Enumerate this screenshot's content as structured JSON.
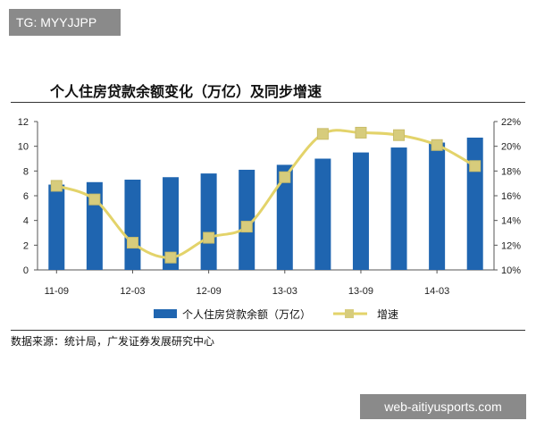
{
  "watermark": {
    "text": "TG: MYYJJPP"
  },
  "title": "个人住房贷款余额变化（万亿）及同步增速",
  "source": "数据来源：统计局，广发证券发展研究中心",
  "footer_badge": "web-aitiyusports.com",
  "colors": {
    "bar": "#1f65b0",
    "line": "#e3d36a",
    "marker": "#d7cc7c"
  },
  "chart_data": {
    "type": "bar",
    "x_tick_labels": [
      "11-09",
      "12-03",
      "12-09",
      "13-03",
      "13-09",
      "14-03"
    ],
    "x_tick_positions": [
      0,
      2,
      4,
      6,
      8,
      10
    ],
    "left_axis": {
      "ylim": [
        0,
        12
      ],
      "ticks": [
        "0",
        "2",
        "4",
        "6",
        "8",
        "10",
        "12"
      ]
    },
    "right_axis": {
      "ylim": [
        10,
        22
      ],
      "ticks": [
        "10%",
        "12%",
        "14%",
        "16%",
        "18%",
        "20%",
        "22%"
      ]
    },
    "series": [
      {
        "name": "个人住房贷款余额（万亿）",
        "type": "bar",
        "axis": "left",
        "values": [
          6.9,
          7.1,
          7.3,
          7.5,
          7.8,
          8.1,
          8.5,
          9.0,
          9.5,
          9.9,
          10.3,
          10.7
        ]
      },
      {
        "name": "增速",
        "type": "line",
        "axis": "right",
        "values": [
          16.8,
          15.7,
          12.2,
          11.0,
          12.6,
          13.5,
          17.5,
          21.0,
          21.1,
          20.9,
          20.1,
          18.4
        ]
      }
    ],
    "legend": "bottom"
  }
}
